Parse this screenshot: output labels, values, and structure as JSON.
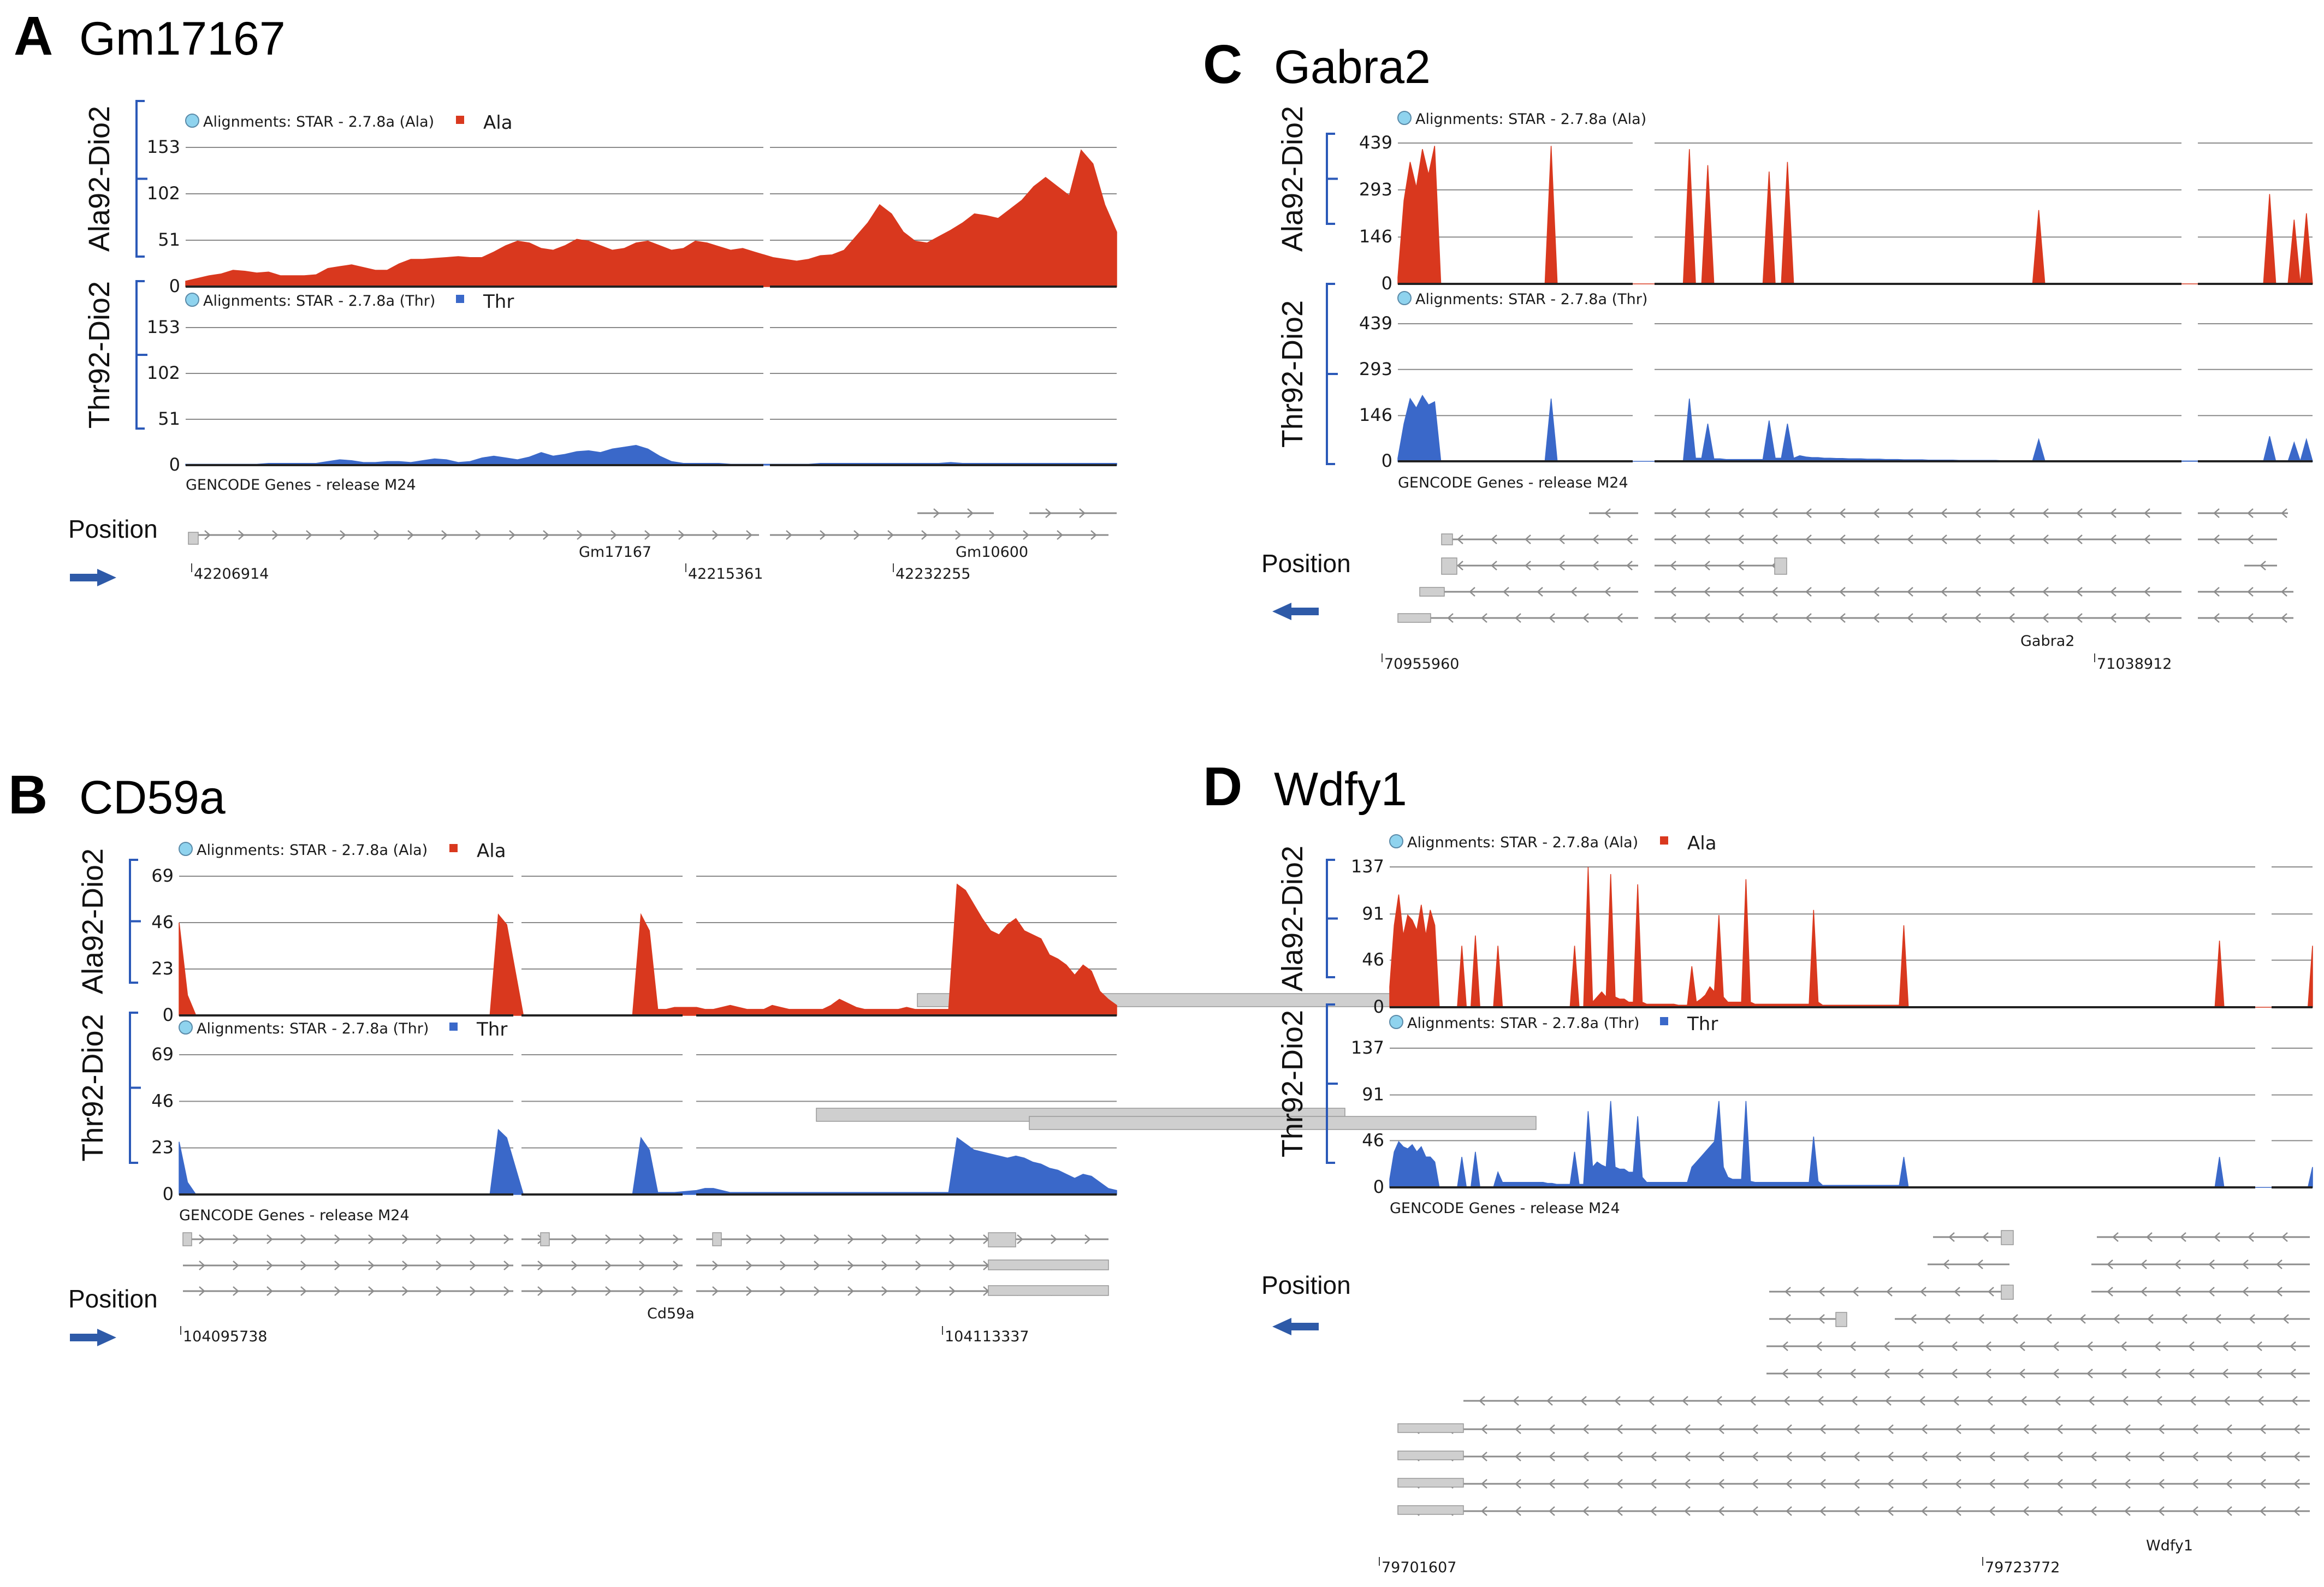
{
  "colors": {
    "ala": "#d9381e",
    "thr": "#3a68c9",
    "gene": "#8c8c8c",
    "exon": "#cfcfcf",
    "grid": "#8a8a8a",
    "bracket": "#2b59b8",
    "arrow": "#2e5aa8",
    "legend_dot": "#8fd3ee"
  },
  "common": {
    "ala_legend": "Alignments: STAR - 2.7.8a (Ala)",
    "thr_legend": "Alignments: STAR - 2.7.8a (Thr)",
    "ala_key": "Ala",
    "thr_key": "Thr",
    "ala_group": "Ala92-Dio2",
    "thr_group": "Thr92-Dio2",
    "genes_track": "GENCODE Genes - release M24",
    "position_label": "Position"
  },
  "chart_data": [
    {
      "panel": "A",
      "type": "area",
      "title": "Gm17167",
      "strand": "forward",
      "xlabel": "Position",
      "ylabel_top": "Ala92-Dio2",
      "ylabel_bottom": "Thr92-Dio2",
      "ylim": [
        0,
        153
      ],
      "yticks": [
        0,
        51,
        102,
        153
      ],
      "x_tick_labels": [
        "42206914",
        "42215361",
        "42232255"
      ],
      "gene_labels": [
        "Gm17167",
        "Gm10600"
      ],
      "series": [
        {
          "name": "Ala",
          "values": [
            6,
            9,
            12,
            14,
            18,
            17,
            15,
            16,
            12,
            12,
            12,
            13,
            20,
            22,
            24,
            21,
            18,
            18,
            25,
            30,
            30,
            31,
            32,
            33,
            32,
            32,
            38,
            45,
            50,
            48,
            42,
            40,
            45,
            52,
            50,
            45,
            40,
            42,
            48,
            50,
            45,
            40,
            42,
            50,
            48,
            44,
            40,
            42,
            38,
            32,
            30,
            28,
            30,
            34,
            35,
            40,
            55,
            70,
            90,
            80,
            60,
            50,
            48,
            55,
            62,
            70,
            80,
            78,
            75,
            85,
            95,
            110,
            120,
            110,
            100,
            150,
            135,
            90,
            60
          ]
        },
        {
          "name": "Thr",
          "values": [
            1,
            1,
            1,
            1,
            1,
            1,
            1,
            2,
            2,
            2,
            2,
            2,
            4,
            6,
            5,
            3,
            3,
            4,
            4,
            3,
            5,
            7,
            6,
            3,
            4,
            8,
            10,
            8,
            6,
            9,
            14,
            10,
            12,
            15,
            16,
            14,
            18,
            20,
            22,
            18,
            10,
            4,
            2,
            2,
            2,
            2,
            1,
            1,
            1,
            1,
            1,
            1,
            1,
            2,
            2,
            2,
            2,
            2,
            2,
            2,
            2,
            2,
            2,
            2,
            3,
            2,
            2,
            2,
            2,
            2,
            2,
            2,
            2,
            2,
            2,
            2,
            2,
            2,
            2
          ]
        }
      ]
    },
    {
      "panel": "B",
      "type": "area",
      "title": "CD59a",
      "strand": "forward",
      "xlabel": "Position",
      "ylabel_top": "Ala92-Dio2",
      "ylabel_bottom": "Thr92-Dio2",
      "ylim": [
        0,
        69
      ],
      "yticks": [
        0,
        23,
        46,
        69
      ],
      "x_tick_labels": [
        "104095738",
        "104113337"
      ],
      "gene_labels": [
        "Cd59a"
      ],
      "series": [
        {
          "name": "Ala",
          "values": [
            46,
            10,
            0,
            0,
            0,
            0,
            0,
            0,
            0,
            0,
            0,
            0,
            0,
            0,
            0,
            0,
            0,
            0,
            0,
            0,
            0,
            0,
            0,
            0,
            0,
            0,
            0,
            0,
            0,
            0,
            0,
            0,
            0,
            0,
            0,
            0,
            0,
            0,
            50,
            45,
            0,
            0,
            0,
            0,
            0,
            0,
            0,
            0,
            0,
            0,
            0,
            0,
            0,
            0,
            50,
            42,
            3,
            3,
            4,
            4,
            3,
            3,
            4,
            5,
            4,
            3,
            3,
            3,
            5,
            4,
            3,
            3,
            3,
            3,
            3,
            5,
            8,
            6,
            4,
            3,
            3,
            3,
            3,
            3,
            4,
            3,
            3,
            3,
            3,
            3,
            65,
            62,
            55,
            48,
            42,
            40,
            45,
            48,
            42,
            40,
            38,
            30,
            28,
            25,
            20,
            25,
            22,
            12,
            8,
            5
          ]
        },
        {
          "name": "Thr",
          "values": [
            26,
            6,
            0,
            0,
            0,
            0,
            0,
            0,
            0,
            0,
            0,
            0,
            0,
            0,
            0,
            0,
            0,
            0,
            0,
            0,
            0,
            0,
            0,
            0,
            0,
            0,
            0,
            0,
            0,
            0,
            0,
            0,
            0,
            0,
            0,
            0,
            0,
            0,
            32,
            28,
            0,
            0,
            0,
            0,
            0,
            0,
            0,
            0,
            0,
            0,
            0,
            0,
            0,
            0,
            28,
            22,
            1,
            1,
            1,
            2,
            3,
            3,
            2,
            1,
            1,
            1,
            1,
            1,
            1,
            1,
            1,
            1,
            1,
            1,
            1,
            1,
            1,
            1,
            1,
            1,
            1,
            1,
            1,
            1,
            1,
            1,
            1,
            1,
            1,
            1,
            28,
            25,
            22,
            21,
            20,
            19,
            18,
            19,
            18,
            16,
            15,
            13,
            12,
            10,
            8,
            10,
            9,
            6,
            3,
            2
          ]
        }
      ]
    },
    {
      "panel": "C",
      "type": "area",
      "title": "Gabra2",
      "strand": "reverse",
      "xlabel": "Position",
      "ylabel_top": "Ala92-Dio2",
      "ylabel_bottom": "Thr92-Dio2",
      "ylim": [
        0,
        439
      ],
      "yticks": [
        0,
        146,
        293,
        439
      ],
      "x_tick_labels": [
        "70955960",
        "71038912"
      ],
      "gene_labels": [
        "Gabra2"
      ],
      "series": [
        {
          "name": "Ala",
          "values": [
            20,
            260,
            380,
            300,
            420,
            340,
            430,
            0,
            0,
            0,
            0,
            0,
            0,
            0,
            0,
            0,
            0,
            0,
            0,
            0,
            0,
            0,
            0,
            0,
            0,
            430,
            0,
            0,
            0,
            0,
            0,
            0,
            0,
            0,
            0,
            0,
            0,
            0,
            0,
            0,
            0,
            0,
            0,
            0,
            420,
            0,
            0,
            370,
            0,
            0,
            0,
            0,
            0,
            0,
            0,
            0,
            0,
            350,
            0,
            0,
            380,
            0,
            0,
            0,
            0,
            0,
            0,
            0,
            0,
            0,
            0,
            0,
            0,
            0,
            0,
            0,
            0,
            0,
            0,
            0,
            0,
            0,
            0,
            0,
            0,
            0,
            0,
            0,
            0,
            0,
            0,
            0,
            0,
            0,
            0,
            0,
            0,
            0,
            0,
            0,
            0,
            230,
            0,
            0,
            0,
            0,
            0,
            0,
            0,
            0,
            0,
            0,
            0,
            0,
            0,
            0,
            0,
            0,
            0,
            0,
            0,
            0,
            0,
            0,
            0,
            0,
            0,
            0,
            0,
            0,
            0,
            0,
            0,
            0,
            0,
            0,
            280,
            0,
            0,
            0,
            200,
            0,
            220,
            0
          ]
        },
        {
          "name": "Thr",
          "values": [
            10,
            120,
            200,
            170,
            210,
            180,
            190,
            0,
            0,
            0,
            0,
            0,
            0,
            0,
            0,
            0,
            0,
            0,
            0,
            0,
            0,
            0,
            0,
            0,
            0,
            200,
            0,
            0,
            0,
            0,
            0,
            0,
            0,
            0,
            0,
            0,
            0,
            0,
            0,
            0,
            0,
            0,
            0,
            0,
            200,
            10,
            10,
            120,
            8,
            8,
            6,
            6,
            6,
            6,
            6,
            6,
            6,
            130,
            10,
            10,
            120,
            10,
            18,
            14,
            12,
            12,
            10,
            10,
            9,
            9,
            8,
            8,
            8,
            7,
            7,
            7,
            6,
            6,
            6,
            5,
            5,
            5,
            5,
            4,
            4,
            4,
            4,
            4,
            3,
            3,
            3,
            3,
            3,
            3,
            3,
            2,
            2,
            2,
            2,
            2,
            2,
            70,
            2,
            2,
            2,
            2,
            1,
            1,
            1,
            1,
            1,
            1,
            1,
            1,
            1,
            1,
            1,
            1,
            1,
            1,
            1,
            1,
            1,
            1,
            1,
            1,
            1,
            1,
            1,
            1,
            1,
            1,
            1,
            1,
            1,
            1,
            80,
            0,
            0,
            0,
            60,
            0,
            70,
            0
          ]
        }
      ]
    },
    {
      "panel": "D",
      "type": "area",
      "title": "Wdfy1",
      "strand": "reverse",
      "xlabel": "Position",
      "ylabel_top": "Ala92-Dio2",
      "ylabel_bottom": "Thr92-Dio2",
      "ylim": [
        0,
        137
      ],
      "yticks": [
        0,
        46,
        91,
        137
      ],
      "x_tick_labels": [
        "79701607",
        "79723772"
      ],
      "gene_labels": [
        "Wdfy1"
      ],
      "series": [
        {
          "name": "Ala",
          "values": [
            20,
            80,
            110,
            70,
            90,
            85,
            75,
            100,
            70,
            95,
            80,
            0,
            0,
            0,
            0,
            0,
            60,
            0,
            0,
            70,
            0,
            0,
            0,
            0,
            60,
            0,
            0,
            0,
            0,
            0,
            0,
            0,
            0,
            0,
            0,
            0,
            0,
            0,
            0,
            0,
            0,
            60,
            0,
            0,
            137,
            5,
            10,
            15,
            10,
            130,
            10,
            8,
            8,
            5,
            5,
            120,
            5,
            3,
            3,
            3,
            3,
            3,
            3,
            3,
            2,
            2,
            2,
            40,
            5,
            8,
            12,
            20,
            15,
            90,
            10,
            5,
            5,
            5,
            5,
            125,
            5,
            3,
            3,
            3,
            3,
            3,
            3,
            3,
            3,
            3,
            3,
            3,
            3,
            3,
            95,
            5,
            2,
            2,
            2,
            2,
            2,
            2,
            2,
            2,
            2,
            2,
            2,
            2,
            2,
            2,
            2,
            2,
            2,
            2,
            80,
            0,
            0,
            0,
            0,
            0,
            0,
            0,
            0,
            0,
            0,
            0,
            0,
            0,
            0,
            0,
            0,
            0,
            0,
            0,
            0,
            0,
            0,
            0,
            0,
            0,
            0,
            0,
            0,
            0,
            0,
            0,
            0,
            0,
            0,
            0,
            0,
            0,
            0,
            0,
            0,
            0,
            0,
            0,
            0,
            0,
            0,
            0,
            0,
            0,
            0,
            0,
            0,
            0,
            0,
            0,
            0,
            0,
            0,
            0,
            0,
            0,
            0,
            0,
            0,
            0,
            0,
            0,
            0,
            0,
            65,
            0,
            0,
            0,
            0,
            0,
            0,
            0,
            0,
            0,
            0,
            0,
            0,
            0,
            0,
            0,
            0,
            60
          ]
        },
        {
          "name": "Thr",
          "values": [
            8,
            35,
            45,
            40,
            38,
            42,
            35,
            40,
            30,
            30,
            25,
            0,
            0,
            0,
            0,
            0,
            30,
            0,
            0,
            35,
            0,
            0,
            0,
            0,
            15,
            5,
            5,
            5,
            5,
            5,
            5,
            5,
            5,
            5,
            5,
            4,
            4,
            3,
            3,
            3,
            3,
            35,
            3,
            3,
            75,
            20,
            25,
            22,
            20,
            85,
            20,
            18,
            18,
            15,
            15,
            70,
            10,
            5,
            5,
            5,
            5,
            5,
            5,
            5,
            5,
            5,
            5,
            20,
            25,
            30,
            35,
            40,
            45,
            85,
            20,
            10,
            8,
            8,
            8,
            85,
            6,
            5,
            5,
            5,
            5,
            5,
            5,
            5,
            5,
            5,
            5,
            5,
            5,
            5,
            50,
            6,
            2,
            2,
            2,
            2,
            2,
            2,
            2,
            2,
            2,
            2,
            2,
            2,
            2,
            2,
            2,
            2,
            2,
            2,
            30,
            0,
            0,
            0,
            0,
            0,
            0,
            0,
            0,
            0,
            0,
            0,
            0,
            0,
            0,
            0,
            0,
            0,
            0,
            0,
            0,
            0,
            0,
            0,
            0,
            0,
            0,
            0,
            0,
            0,
            0,
            0,
            0,
            0,
            0,
            0,
            0,
            0,
            0,
            0,
            0,
            0,
            0,
            0,
            0,
            0,
            0,
            0,
            0,
            0,
            0,
            0,
            0,
            0,
            0,
            0,
            0,
            0,
            0,
            0,
            0,
            0,
            0,
            0,
            0,
            0,
            0,
            0,
            0,
            0,
            30,
            0,
            0,
            0,
            0,
            0,
            0,
            0,
            0,
            0,
            0,
            0,
            0,
            0,
            0,
            0,
            0,
            20
          ]
        }
      ]
    }
  ]
}
